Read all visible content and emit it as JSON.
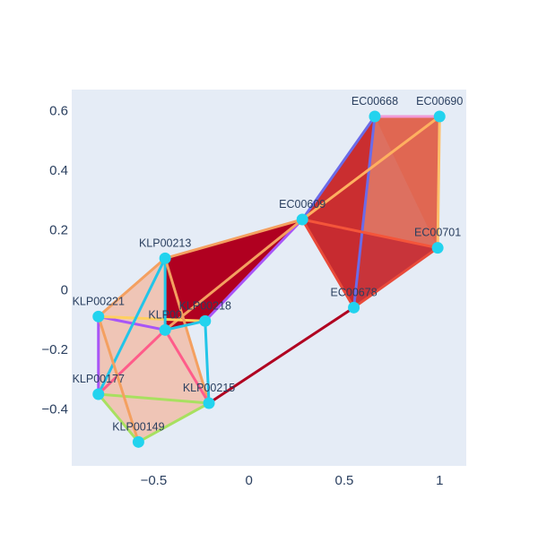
{
  "chart_data": {
    "type": "scatter",
    "title": "",
    "xlabel": "",
    "ylabel": "",
    "xlim": [
      -0.93,
      1.14
    ],
    "ylim": [
      -0.59,
      0.67
    ],
    "x_ticks": [
      -0.5,
      0,
      0.5,
      1
    ],
    "x_tick_labels": [
      "−0.5",
      "0",
      "0.5",
      "1"
    ],
    "y_ticks": [
      -0.4,
      -0.2,
      0,
      0.2,
      0.4,
      0.6
    ],
    "y_tick_labels": [
      "−0.4",
      "−0.2",
      "0",
      "0.2",
      "0.4",
      "0.6"
    ],
    "grid": false,
    "colors": {
      "plot_bg": "#E5ECF6",
      "node": "#22D3EE",
      "tick_text": "#2a3f5f",
      "dark_red": "#B00020"
    },
    "nodes": [
      {
        "id": "EC00668",
        "x": 0.66,
        "y": 0.58
      },
      {
        "id": "EC00690",
        "x": 1.0,
        "y": 0.58
      },
      {
        "id": "EC00609",
        "x": 0.28,
        "y": 0.235
      },
      {
        "id": "EC00701",
        "x": 0.99,
        "y": 0.14
      },
      {
        "id": "EC00678",
        "x": 0.55,
        "y": -0.06
      },
      {
        "id": "KLP00213",
        "x": -0.44,
        "y": 0.105
      },
      {
        "id": "KLP00221",
        "x": -0.79,
        "y": -0.09
      },
      {
        "id": "KLP00218",
        "x": -0.23,
        "y": -0.105
      },
      {
        "id": "KLP00xxx",
        "x": -0.44,
        "y": -0.135
      },
      {
        "id": "KLP00177",
        "x": -0.79,
        "y": -0.35
      },
      {
        "id": "KLP00215",
        "x": -0.21,
        "y": -0.38
      },
      {
        "id": "KLP00149",
        "x": -0.58,
        "y": -0.51
      }
    ],
    "node_labels": [
      {
        "node": "EC00668",
        "text": "EC00668"
      },
      {
        "node": "EC00690",
        "text": "EC00690"
      },
      {
        "node": "EC00609",
        "text": "EC00609"
      },
      {
        "node": "EC00701",
        "text": "EC00701"
      },
      {
        "node": "EC00678",
        "text": "EC00678"
      },
      {
        "node": "KLP00213",
        "text": "KLP00213"
      },
      {
        "node": "KLP00221",
        "text": "KLP00221"
      },
      {
        "node": "KLP00218",
        "text": "KLP00218"
      },
      {
        "node": "KLP00xxx",
        "text": "KLP00"
      },
      {
        "node": "KLP00177",
        "text": "KLP00177"
      },
      {
        "node": "KLP00215",
        "text": "KLP00215"
      },
      {
        "node": "KLP00149",
        "text": "KLP00149"
      }
    ],
    "faces": [
      {
        "nodes": [
          "KLP00221",
          "KLP00213",
          "KLP00215",
          "KLP00149",
          "KLP00177"
        ],
        "color": "#F2B8A0",
        "opacity": 0.75
      },
      {
        "nodes": [
          "EC00668",
          "EC00690",
          "EC00701"
        ],
        "color": "#F4A88E",
        "opacity": 0.9
      },
      {
        "nodes": [
          "EC00609",
          "EC00668",
          "EC00690",
          "EC00701"
        ],
        "color": "#DC5A45",
        "opacity": 0.85
      },
      {
        "nodes": [
          "EC00609",
          "EC00668",
          "EC00678"
        ],
        "color": "#C8272B",
        "opacity": 0.9
      },
      {
        "nodes": [
          "EC00609",
          "EC00701",
          "EC00678"
        ],
        "color": "#C62A2F",
        "opacity": 0.95
      },
      {
        "nodes": [
          "KLP00213",
          "EC00609",
          "KLP00218",
          "KLP00xxx"
        ],
        "color": "#B00020",
        "opacity": 1.0
      }
    ],
    "edges": [
      {
        "from": "EC00668",
        "to": "EC00690",
        "color": "#F09BD8"
      },
      {
        "from": "EC00690",
        "to": "EC00701",
        "color": "#FFC06A"
      },
      {
        "from": "EC00668",
        "to": "EC00609",
        "color": "#6B6BE8"
      },
      {
        "from": "EC00668",
        "to": "EC00678",
        "color": "#6B6BE8"
      },
      {
        "from": "EC00690",
        "to": "EC00609",
        "color": "#FFB060"
      },
      {
        "from": "EC00609",
        "to": "EC00701",
        "color": "#F4553A"
      },
      {
        "from": "EC00609",
        "to": "EC00678",
        "color": "#E94A3A"
      },
      {
        "from": "EC00701",
        "to": "EC00678",
        "color": "#E94A3A"
      },
      {
        "from": "KLP00213",
        "to": "EC00609",
        "color": "#F4A060"
      },
      {
        "from": "KLP00218",
        "to": "EC00609",
        "color": "#A855F7"
      },
      {
        "from": "KLP00xxx",
        "to": "EC00609",
        "color": "#F4A060"
      },
      {
        "from": "KLP00215",
        "to": "EC00678",
        "color": "#B00020"
      },
      {
        "from": "KLP00221",
        "to": "KLP00213",
        "color": "#F4A060"
      },
      {
        "from": "KLP00221",
        "to": "KLP00177",
        "color": "#A855F7"
      },
      {
        "from": "KLP00221",
        "to": "KLP00xxx",
        "color": "#A855F7"
      },
      {
        "from": "KLP00221",
        "to": "KLP00218",
        "color": "#FFD060"
      },
      {
        "from": "KLP00213",
        "to": "KLP00177",
        "color": "#22C5E8"
      },
      {
        "from": "KLP00213",
        "to": "KLP00xxx",
        "color": "#22C5E8"
      },
      {
        "from": "KLP00213",
        "to": "KLP00215",
        "color": "#F4A060"
      },
      {
        "from": "KLP00xxx",
        "to": "KLP00177",
        "color": "#FF5C8A"
      },
      {
        "from": "KLP00xxx",
        "to": "KLP00215",
        "color": "#FF5C8A"
      },
      {
        "from": "KLP00218",
        "to": "KLP00215",
        "color": "#22C5E8"
      },
      {
        "from": "KLP00xxx",
        "to": "KLP00218",
        "color": "#22C5E8"
      },
      {
        "from": "KLP00177",
        "to": "KLP00215",
        "color": "#A8E060"
      },
      {
        "from": "KLP00177",
        "to": "KLP00149",
        "color": "#A8E060"
      },
      {
        "from": "KLP00149",
        "to": "KLP00215",
        "color": "#A8E060"
      },
      {
        "from": "KLP00221",
        "to": "KLP00149",
        "color": "#F4A060"
      }
    ]
  }
}
